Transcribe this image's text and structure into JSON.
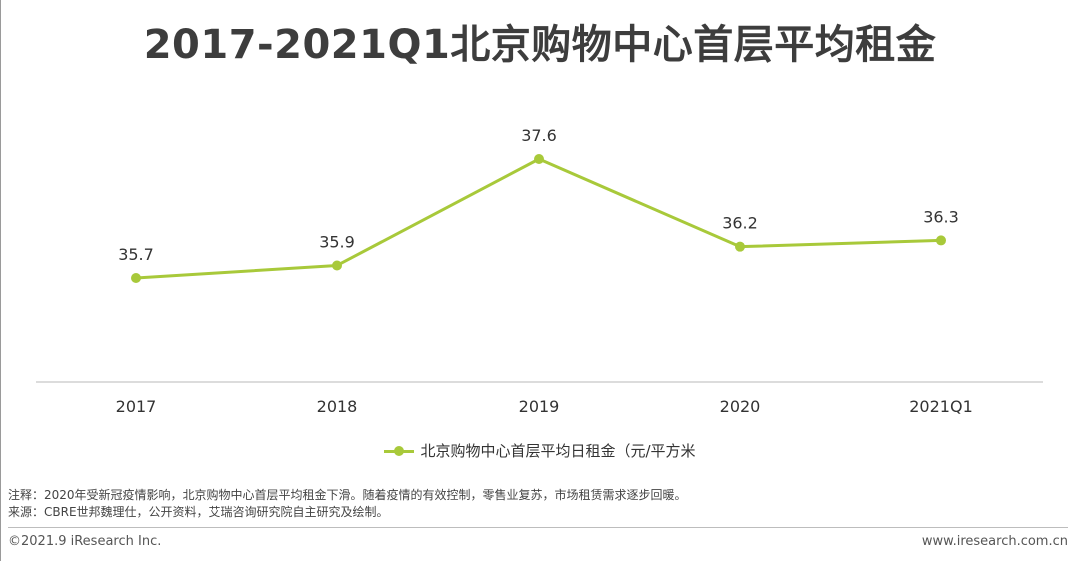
{
  "title": "2017-2021Q1北京购物中心首层平均租金",
  "chart_data": {
    "type": "line",
    "categories": [
      "2017",
      "2018",
      "2019",
      "2020",
      "2021Q1"
    ],
    "series": [
      {
        "name": "北京购物中心首层平均日租金（元/平方米",
        "values": [
          35.7,
          35.9,
          37.6,
          36.2,
          36.3
        ],
        "labels": [
          "35.7",
          "35.9",
          "37.6",
          "36.2",
          "36.3"
        ],
        "color": "#a8c93a"
      }
    ],
    "ylim": [
      34.0,
      38.0
    ],
    "grid": false,
    "legend": "bottom-center",
    "axis_color": "#c8c8c8"
  },
  "legend": {
    "label": "北京购物中心首层平均日租金（元/平方米"
  },
  "notes": {
    "note": "注释：2020年受新冠疫情影响，北京购物中心首层平均租金下滑。随着疫情的有效控制，零售业复苏，市场租赁需求逐步回暖。",
    "source": "来源：CBRE世邦魏理仕，公开资料，艾瑞咨询研究院自主研究及绘制。"
  },
  "footer": {
    "copyright": "©2021.9 iResearch Inc.",
    "site": "www.iresearch.com.cn"
  }
}
